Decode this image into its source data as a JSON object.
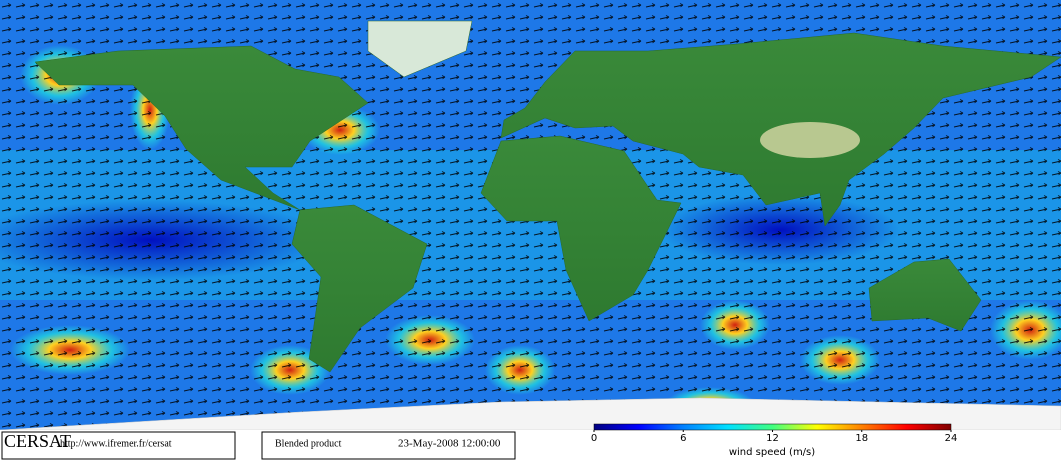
{
  "footer": {
    "org": "CERSAT",
    "url": "http://www.ifremer.fr/cersat",
    "product": "Blended product",
    "datetime": "23-May-2008 12:00:00"
  },
  "colorbar": {
    "label": "wind speed (m/s)",
    "lim": [
      0,
      24
    ],
    "ticks": [
      0,
      6,
      12,
      18,
      24
    ],
    "colors": [
      "#000080",
      "#0000ff",
      "#0080ff",
      "#00e0ff",
      "#40ff80",
      "#ffff00",
      "#ff8000",
      "#ff0000",
      "#800000"
    ]
  }
}
